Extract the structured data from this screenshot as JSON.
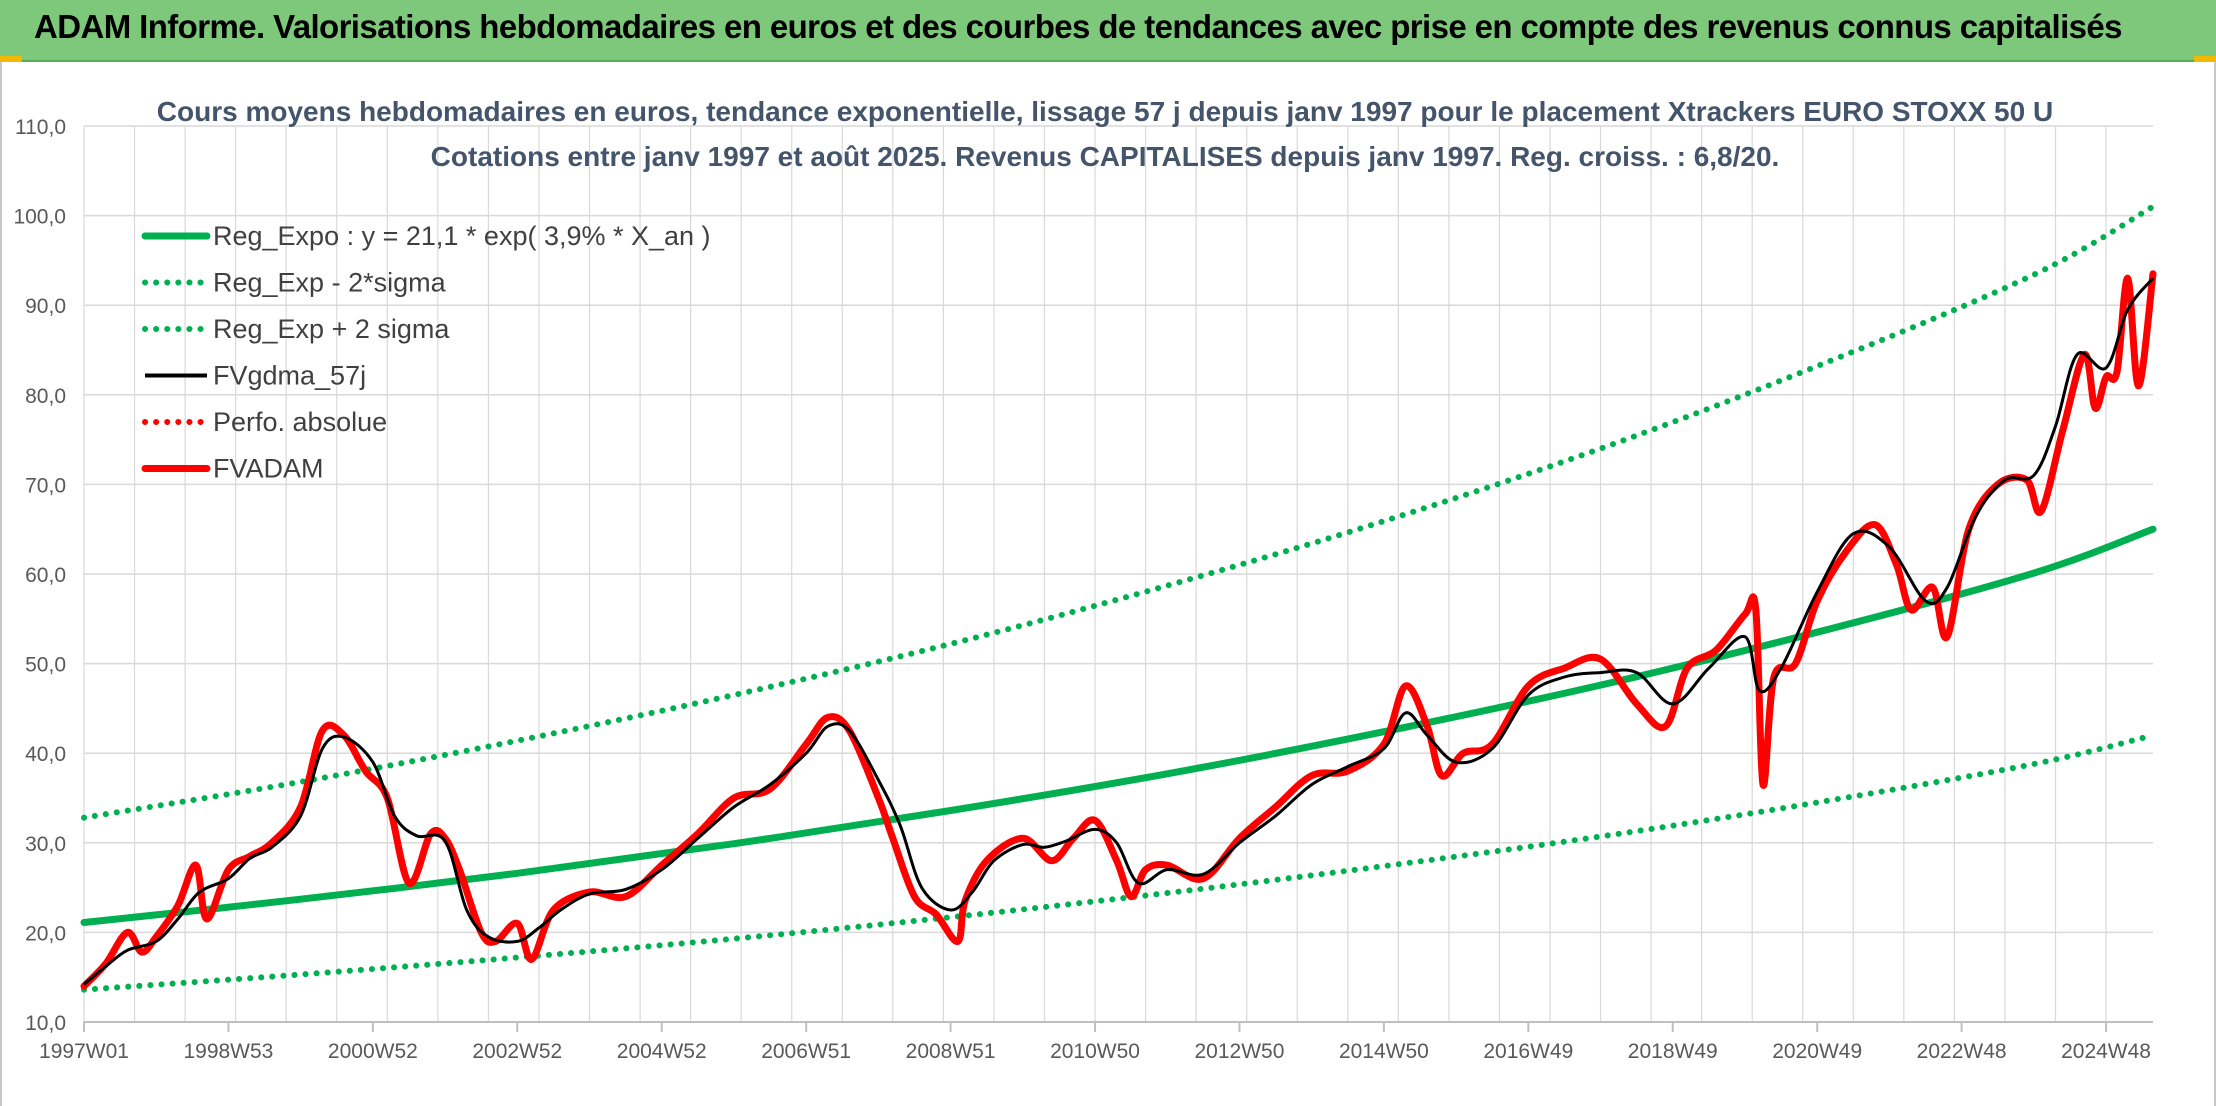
{
  "banner": {
    "title": "ADAM Informe. Valorisations hebdomadaires en euros et des courbes de tendances avec prise en compte des revenus connus capitalisés"
  },
  "colors": {
    "banner_bg": "#7dc87a",
    "regression": "#00b050",
    "actual": "#ff0000",
    "smoothed": "#000000",
    "grid": "#d9d9d9"
  },
  "chart_data": {
    "type": "line",
    "title": "Cours moyens hebdomadaires en euros, tendance exponentielle, lissage 57 j depuis janv 1997 pour le placement Xtrackers EURO STOXX 50 U",
    "subtitle": "Cotations entre janv 1997 et août 2025. Revenus CAPITALISES depuis janv 1997. Reg. croiss. : 6,8/20.",
    "xlabel": "",
    "ylabel": "",
    "ylim": [
      10,
      110
    ],
    "yticks": [
      "10,0",
      "20,0",
      "30,0",
      "40,0",
      "50,0",
      "60,0",
      "70,0",
      "80,0",
      "90,0",
      "100,0",
      "110,0"
    ],
    "xrange": [
      1997.0,
      2025.65
    ],
    "xticks": [
      {
        "label": "1997W01",
        "x": 1997.0
      },
      {
        "label": "1998W53",
        "x": 1999.0
      },
      {
        "label": "2000W52",
        "x": 2001.0
      },
      {
        "label": "2002W52",
        "x": 2003.0
      },
      {
        "label": "2004W52",
        "x": 2005.0
      },
      {
        "label": "2006W51",
        "x": 2007.0
      },
      {
        "label": "2008W51",
        "x": 2009.0
      },
      {
        "label": "2010W50",
        "x": 2011.0
      },
      {
        "label": "2012W50",
        "x": 2013.0
      },
      {
        "label": "2014W50",
        "x": 2015.0
      },
      {
        "label": "2016W49",
        "x": 2017.0
      },
      {
        "label": "2018W49",
        "x": 2019.0
      },
      {
        "label": "2020W49",
        "x": 2021.0
      },
      {
        "label": "2022W48",
        "x": 2023.0
      },
      {
        "label": "2024W48",
        "x": 2025.0
      }
    ],
    "grid": true,
    "legend_position": "top-left",
    "series": [
      {
        "name": "Reg_Expo : y = 21,1 * exp( 3,9% *  X_an )",
        "style": "solid-thick",
        "color": "#00b050",
        "x": [
          1997.0,
          2000.0,
          2003.0,
          2006.0,
          2009.0,
          2012.0,
          2015.0,
          2018.0,
          2021.0,
          2024.0,
          2025.65
        ],
        "values": [
          21.1,
          23.7,
          26.6,
          29.9,
          33.6,
          37.7,
          42.4,
          47.6,
          53.5,
          60.1,
          65.0
        ]
      },
      {
        "name": "Reg_Exp - 2*sigma",
        "style": "dotted",
        "color": "#00b050",
        "x": [
          1997.0,
          2000.0,
          2003.0,
          2006.0,
          2009.0,
          2012.0,
          2015.0,
          2018.0,
          2021.0,
          2024.0,
          2025.65
        ],
        "values": [
          13.6,
          15.3,
          17.2,
          19.3,
          21.7,
          24.4,
          27.4,
          30.7,
          34.5,
          38.8,
          42.0
        ]
      },
      {
        "name": "Reg_Exp + 2 sigma",
        "style": "dotted",
        "color": "#00b050",
        "x": [
          1997.0,
          2000.0,
          2003.0,
          2006.0,
          2009.0,
          2012.0,
          2015.0,
          2018.0,
          2021.0,
          2024.0,
          2025.65
        ],
        "values": [
          32.8,
          36.8,
          41.4,
          46.5,
          52.2,
          58.7,
          65.9,
          74.0,
          83.2,
          93.4,
          101.0
        ]
      },
      {
        "name": "FVgdma_57j",
        "style": "solid",
        "color": "#000000",
        "x": [
          1997.0,
          1997.3,
          1997.6,
          1998.0,
          1998.3,
          1998.6,
          1999.0,
          1999.3,
          1999.6,
          2000.0,
          2000.3,
          2000.6,
          2001.0,
          2001.3,
          2001.6,
          2002.0,
          2002.3,
          2002.6,
          2003.0,
          2003.3,
          2003.6,
          2004.0,
          2004.5,
          2005.0,
          2005.5,
          2006.0,
          2006.5,
          2007.0,
          2007.3,
          2007.6,
          2008.0,
          2008.3,
          2008.6,
          2009.0,
          2009.3,
          2009.6,
          2010.0,
          2010.3,
          2010.6,
          2011.0,
          2011.3,
          2011.6,
          2012.0,
          2012.5,
          2013.0,
          2013.5,
          2014.0,
          2014.5,
          2015.0,
          2015.3,
          2015.6,
          2016.0,
          2016.5,
          2017.0,
          2017.5,
          2018.0,
          2018.5,
          2019.0,
          2019.5,
          2020.0,
          2020.2,
          2020.5,
          2021.0,
          2021.5,
          2022.0,
          2022.5,
          2022.8,
          2023.2,
          2023.6,
          2024.0,
          2024.3,
          2024.6,
          2025.0,
          2025.3,
          2025.65
        ],
        "values": [
          14.2,
          16.2,
          18.0,
          19.0,
          21.5,
          24.5,
          26.0,
          28.3,
          29.5,
          33.0,
          40.5,
          41.8,
          39.0,
          33.0,
          30.8,
          30.2,
          22.5,
          19.5,
          19.0,
          20.5,
          22.5,
          24.3,
          24.8,
          27.0,
          30.5,
          34.0,
          36.5,
          40.0,
          43.0,
          42.5,
          37.0,
          32.0,
          25.0,
          22.5,
          24.5,
          28.0,
          29.8,
          29.5,
          30.2,
          31.5,
          30.0,
          25.5,
          27.0,
          26.5,
          30.0,
          33.0,
          36.5,
          38.5,
          40.5,
          44.5,
          42.0,
          39.0,
          40.5,
          46.5,
          48.5,
          49.0,
          49.0,
          45.5,
          49.5,
          53.0,
          47.0,
          49.5,
          58.0,
          64.5,
          63.0,
          57.0,
          58.5,
          66.5,
          70.5,
          71.0,
          76.5,
          84.5,
          83.0,
          89.5,
          93.0
        ]
      },
      {
        "name": "Perfo. absolue",
        "style": "dotted",
        "color": "#ff0000",
        "x": [],
        "values": []
      },
      {
        "name": "FVADAM",
        "style": "solid-thick",
        "color": "#ff0000",
        "x": [
          1997.0,
          1997.3,
          1997.6,
          1997.8,
          1998.0,
          1998.3,
          1998.55,
          1998.7,
          1999.0,
          1999.3,
          1999.6,
          2000.0,
          2000.3,
          2000.6,
          2000.9,
          2001.2,
          2001.5,
          2001.8,
          2002.0,
          2002.2,
          2002.5,
          2002.7,
          2003.0,
          2003.2,
          2003.5,
          2004.0,
          2004.5,
          2005.0,
          2005.5,
          2006.0,
          2006.5,
          2007.0,
          2007.3,
          2007.6,
          2008.0,
          2008.2,
          2008.5,
          2008.8,
          2009.1,
          2009.2,
          2009.5,
          2010.0,
          2010.4,
          2010.7,
          2011.0,
          2011.3,
          2011.5,
          2011.7,
          2012.0,
          2012.5,
          2013.0,
          2013.5,
          2014.0,
          2014.5,
          2015.0,
          2015.3,
          2015.6,
          2015.8,
          2016.1,
          2016.5,
          2017.0,
          2017.5,
          2018.0,
          2018.5,
          2018.9,
          2019.2,
          2019.6,
          2020.0,
          2020.15,
          2020.25,
          2020.4,
          2020.7,
          2021.0,
          2021.4,
          2021.8,
          2022.1,
          2022.3,
          2022.6,
          2022.8,
          2023.1,
          2023.5,
          2023.9,
          2024.1,
          2024.4,
          2024.7,
          2024.85,
          2025.0,
          2025.15,
          2025.3,
          2025.45,
          2025.65
        ],
        "values": [
          14.0,
          16.5,
          20.0,
          17.8,
          19.5,
          23.0,
          27.5,
          21.5,
          27.0,
          28.5,
          30.0,
          34.0,
          42.5,
          42.0,
          38.0,
          35.0,
          25.5,
          31.0,
          30.5,
          27.0,
          20.0,
          19.0,
          21.0,
          17.0,
          22.5,
          24.5,
          24.0,
          27.5,
          31.0,
          35.0,
          36.0,
          41.0,
          44.0,
          42.5,
          35.0,
          30.5,
          24.0,
          22.0,
          19.0,
          23.5,
          28.0,
          30.5,
          28.0,
          30.5,
          32.5,
          28.0,
          24.0,
          27.0,
          27.5,
          26.0,
          30.5,
          34.0,
          37.5,
          38.0,
          41.0,
          47.5,
          43.0,
          37.5,
          40.0,
          41.0,
          47.5,
          49.5,
          50.5,
          45.5,
          43.0,
          49.5,
          51.5,
          55.5,
          56.0,
          36.5,
          48.5,
          50.0,
          57.0,
          62.5,
          65.5,
          61.0,
          56.0,
          58.5,
          53.0,
          65.0,
          70.0,
          70.5,
          67.0,
          76.0,
          84.5,
          78.5,
          82.0,
          82.5,
          93.0,
          81.0,
          93.5
        ]
      }
    ]
  }
}
